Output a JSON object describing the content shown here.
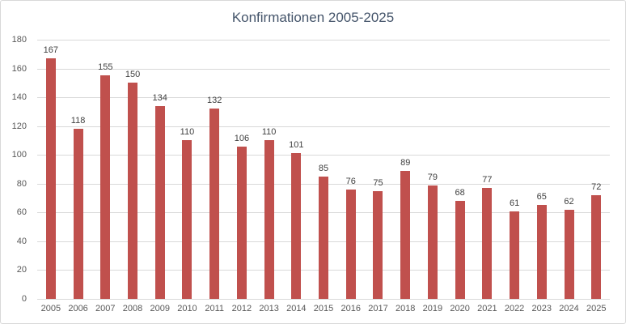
{
  "title": "Konfirmationen 2005-2025",
  "colors": {
    "bar": "#c0504d",
    "title_text": "#44546a",
    "axis_text": "#595959",
    "data_label_text": "#404040",
    "gridline": "#d9d9d9",
    "border": "#d9d9d9",
    "background": "#ffffff"
  },
  "chart_data": {
    "type": "bar",
    "title": "Konfirmationen 2005-2025",
    "categories": [
      "2005",
      "2006",
      "2007",
      "2008",
      "2009",
      "2010",
      "2011",
      "2012",
      "2013",
      "2014",
      "2015",
      "2016",
      "2017",
      "2018",
      "2019",
      "2020",
      "2021",
      "2022",
      "2023",
      "2024",
      "2025"
    ],
    "values": [
      167,
      118,
      155,
      150,
      134,
      110,
      132,
      106,
      110,
      101,
      85,
      76,
      75,
      89,
      79,
      68,
      77,
      61,
      65,
      62,
      72
    ],
    "xlabel": "",
    "ylabel": "",
    "ylim": [
      0,
      180
    ],
    "yticks": [
      0,
      20,
      40,
      60,
      80,
      100,
      120,
      140,
      160,
      180
    ],
    "grid": true,
    "legend": false,
    "data_labels": true
  }
}
